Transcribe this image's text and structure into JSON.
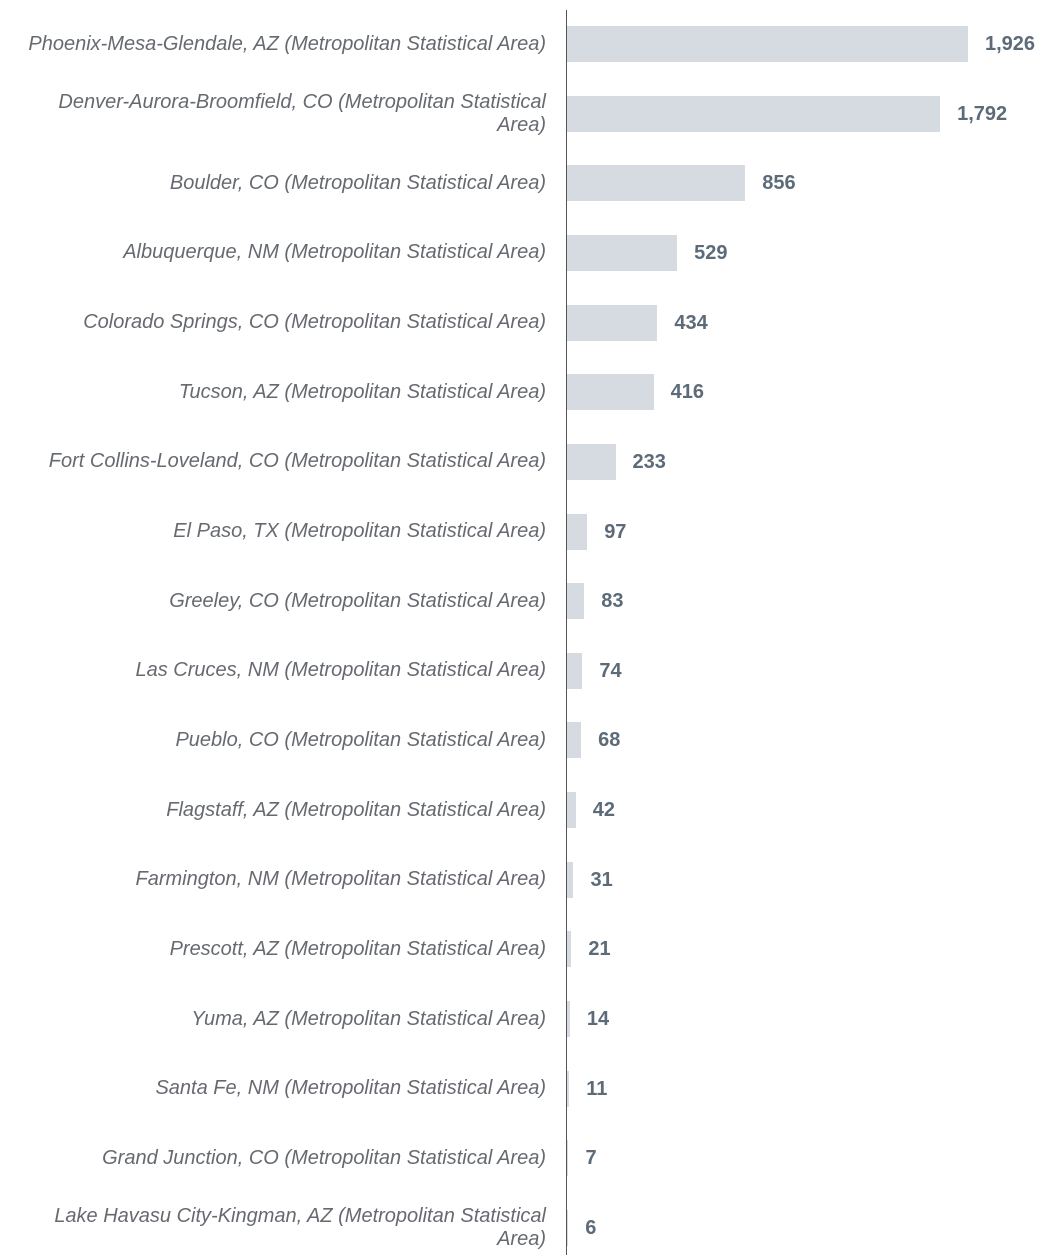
{
  "chart_data": {
    "type": "bar",
    "orientation": "horizontal",
    "categories": [
      "Phoenix-Mesa-Glendale, AZ (Metropolitan Statistical Area)",
      "Denver-Aurora-Broomfield, CO (Metropolitan Statistical Area)",
      "Boulder, CO (Metropolitan Statistical Area)",
      "Albuquerque, NM (Metropolitan Statistical Area)",
      "Colorado Springs, CO (Metropolitan Statistical Area)",
      "Tucson, AZ (Metropolitan Statistical Area)",
      "Fort Collins-Loveland, CO (Metropolitan Statistical Area)",
      "El Paso, TX (Metropolitan Statistical Area)",
      "Greeley, CO (Metropolitan Statistical Area)",
      "Las Cruces, NM (Metropolitan Statistical Area)",
      "Pueblo, CO (Metropolitan Statistical Area)",
      "Flagstaff, AZ (Metropolitan Statistical Area)",
      "Farmington, NM (Metropolitan Statistical Area)",
      "Prescott, AZ (Metropolitan Statistical Area)",
      "Yuma, AZ (Metropolitan Statistical Area)",
      "Santa Fe, NM (Metropolitan Statistical Area)",
      "Grand Junction, CO (Metropolitan Statistical Area)",
      "Lake Havasu City-Kingman, AZ (Metropolitan Statistical Area)"
    ],
    "values": [
      1926,
      1792,
      856,
      529,
      434,
      416,
      233,
      97,
      83,
      74,
      68,
      42,
      31,
      21,
      14,
      11,
      7,
      6
    ],
    "value_labels": [
      "1,926",
      "1,792",
      "856",
      "529",
      "434",
      "416",
      "233",
      "97",
      "83",
      "74",
      "68",
      "42",
      "31",
      "21",
      "14",
      "11",
      "7",
      "6"
    ],
    "color": "#d5dbe1"
  }
}
